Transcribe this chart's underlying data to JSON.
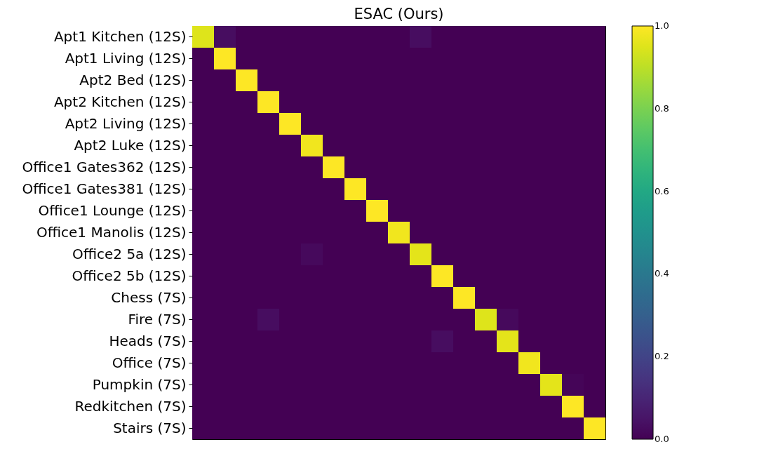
{
  "chart_data": {
    "type": "heatmap",
    "title": "ESAC (Ours)",
    "categories": [
      null,
      null,
      null,
      null,
      null,
      null,
      null,
      null,
      null,
      null,
      null,
      null,
      null,
      null,
      null,
      null,
      null,
      null,
      null
    ],
    "y_categories": [
      "Apt1 Kitchen (12S)",
      "Apt1 Living (12S)",
      "Apt2 Bed (12S)",
      "Apt2 Kitchen (12S)",
      "Apt2 Living (12S)",
      "Apt2 Luke (12S)",
      "Office1 Gates362 (12S)",
      "Office1 Gates381 (12S)",
      "Office1 Lounge (12S)",
      "Office1 Manolis (12S)",
      "Office2 5a (12S)",
      "Office2 5b (12S)",
      "Chess (7S)",
      "Fire (7S)",
      "Heads (7S)",
      "Office (7S)",
      "Pumpkin (7S)",
      "Redkitchen (7S)",
      "Stairs (7S)"
    ],
    "cells": [
      [
        0.95,
        0.03,
        0,
        0,
        0,
        0,
        0,
        0,
        0,
        0,
        0.03,
        0,
        0,
        0,
        0,
        0,
        0,
        0,
        0
      ],
      [
        0,
        1,
        0,
        0,
        0,
        0,
        0,
        0,
        0,
        0,
        0,
        0,
        0,
        0,
        0,
        0,
        0,
        0,
        0
      ],
      [
        0,
        0,
        1,
        0,
        0,
        0,
        0,
        0,
        0,
        0,
        0,
        0,
        0,
        0,
        0,
        0,
        0,
        0,
        0
      ],
      [
        0,
        0,
        0,
        1,
        0,
        0,
        0,
        0,
        0,
        0,
        0,
        0,
        0,
        0,
        0,
        0,
        0,
        0,
        0
      ],
      [
        0,
        0,
        0,
        0,
        1,
        0,
        0,
        0,
        0,
        0,
        0,
        0,
        0,
        0,
        0,
        0,
        0,
        0,
        0
      ],
      [
        0,
        0,
        0,
        0,
        0,
        0.98,
        0,
        0,
        0,
        0,
        0,
        0,
        0,
        0,
        0,
        0,
        0,
        0,
        0
      ],
      [
        0,
        0,
        0,
        0,
        0,
        0,
        1,
        0,
        0,
        0,
        0,
        0,
        0,
        0,
        0,
        0,
        0,
        0,
        0
      ],
      [
        0,
        0,
        0,
        0,
        0,
        0,
        0,
        1,
        0,
        0,
        0,
        0,
        0,
        0,
        0,
        0,
        0,
        0,
        0
      ],
      [
        0,
        0,
        0,
        0,
        0,
        0,
        0,
        0,
        1,
        0,
        0,
        0,
        0,
        0,
        0,
        0,
        0,
        0,
        0
      ],
      [
        0,
        0,
        0,
        0,
        0,
        0,
        0,
        0,
        0,
        0.98,
        0,
        0,
        0,
        0,
        0,
        0,
        0,
        0,
        0
      ],
      [
        0,
        0,
        0,
        0,
        0,
        0.02,
        0,
        0,
        0,
        0,
        0.96,
        0,
        0,
        0,
        0,
        0,
        0,
        0,
        0
      ],
      [
        0,
        0,
        0,
        0,
        0,
        0,
        0,
        0,
        0,
        0,
        0,
        1,
        0,
        0,
        0,
        0,
        0,
        0,
        0
      ],
      [
        0,
        0,
        0,
        0,
        0,
        0,
        0,
        0,
        0,
        0,
        0,
        0,
        1,
        0,
        0,
        0,
        0,
        0,
        0
      ],
      [
        0,
        0,
        0,
        0.03,
        0,
        0,
        0,
        0,
        0,
        0,
        0,
        0,
        0,
        0.95,
        0.02,
        0,
        0,
        0,
        0
      ],
      [
        0,
        0,
        0,
        0,
        0,
        0,
        0,
        0,
        0,
        0,
        0,
        0.03,
        0,
        0,
        0.96,
        0,
        0,
        0,
        0
      ],
      [
        0,
        0,
        0,
        0,
        0,
        0,
        0,
        0,
        0,
        0,
        0,
        0,
        0,
        0,
        0,
        0.98,
        0,
        0,
        0
      ],
      [
        0,
        0,
        0,
        0,
        0,
        0,
        0,
        0,
        0,
        0,
        0,
        0,
        0,
        0,
        0,
        0,
        0.96,
        0.01,
        0
      ],
      [
        0,
        0,
        0,
        0,
        0,
        0,
        0,
        0,
        0,
        0,
        0,
        0,
        0,
        0,
        0,
        0,
        0,
        1,
        0
      ],
      [
        0,
        0,
        0,
        0,
        0,
        0,
        0,
        0,
        0,
        0,
        0,
        0,
        0,
        0,
        0,
        0,
        0,
        0,
        1
      ]
    ],
    "clim": [
      0,
      1
    ],
    "cticks": [
      {
        "value": 0,
        "label": "0.0"
      },
      0.2,
      0.4,
      0.6,
      0.8,
      {
        "value": 1,
        "label": "1.0"
      }
    ]
  }
}
